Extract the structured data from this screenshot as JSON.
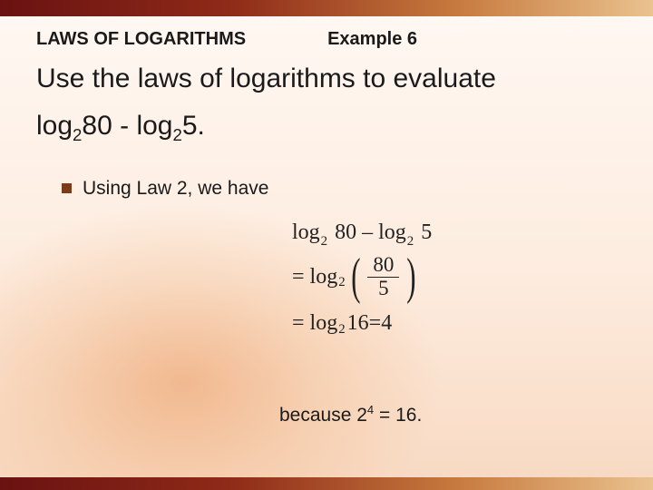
{
  "colors": {
    "bar_gradient": [
      "#6a1212",
      "#8e2a18",
      "#c77a3e",
      "#eac28f"
    ],
    "bg_gradient": [
      "#fff8f3",
      "#fdecdf",
      "#f8d9c2"
    ],
    "radial_accent": "#ea965a",
    "text": "#1a1a1a",
    "bullet": "#7b3a1a",
    "math_text": "#222222"
  },
  "typography": {
    "body_font": "Arial",
    "math_font": "Times New Roman",
    "section_title_size_pt": 15,
    "prompt_size_pt": 22,
    "bullet_text_size_pt": 16,
    "math_size_pt": 18,
    "because_size_pt": 16
  },
  "header": {
    "section_title": "LAWS OF LOGARITHMS",
    "example_label": "Example 6"
  },
  "prompt": {
    "line1": "Use the laws of logarithms to evaluate",
    "expr_prefix1": "log",
    "expr_sub1": "2",
    "expr_arg1": "80",
    "expr_minus": " - ",
    "expr_prefix2": "log",
    "expr_sub2": "2",
    "expr_arg2": "5.",
    "full_expression": "log_2 80 - log_2 5"
  },
  "bullet": {
    "text": "Using Law 2, we have"
  },
  "math": {
    "line1": {
      "log1": "log",
      "sub1": "2",
      "arg1": " 80",
      "minus": " – ",
      "log2": "log",
      "sub2": "2",
      "arg2": " 5"
    },
    "line2": {
      "eq": "=",
      "log": "log",
      "sub": "2",
      "lparen": "(",
      "rparen": ")",
      "frac_num": "80",
      "frac_den": "5"
    },
    "line3": {
      "eq1": "=",
      "log": "log",
      "sub": "2",
      "arg": " 16",
      "eq2": " = ",
      "result": "4"
    },
    "values": {
      "input1": 80,
      "input2": 5,
      "quotient": 16,
      "result": 4,
      "base": 2
    }
  },
  "because": {
    "prefix": "because ",
    "base": "2",
    "exp": "4",
    "eq": " = ",
    "rhs": "16."
  }
}
